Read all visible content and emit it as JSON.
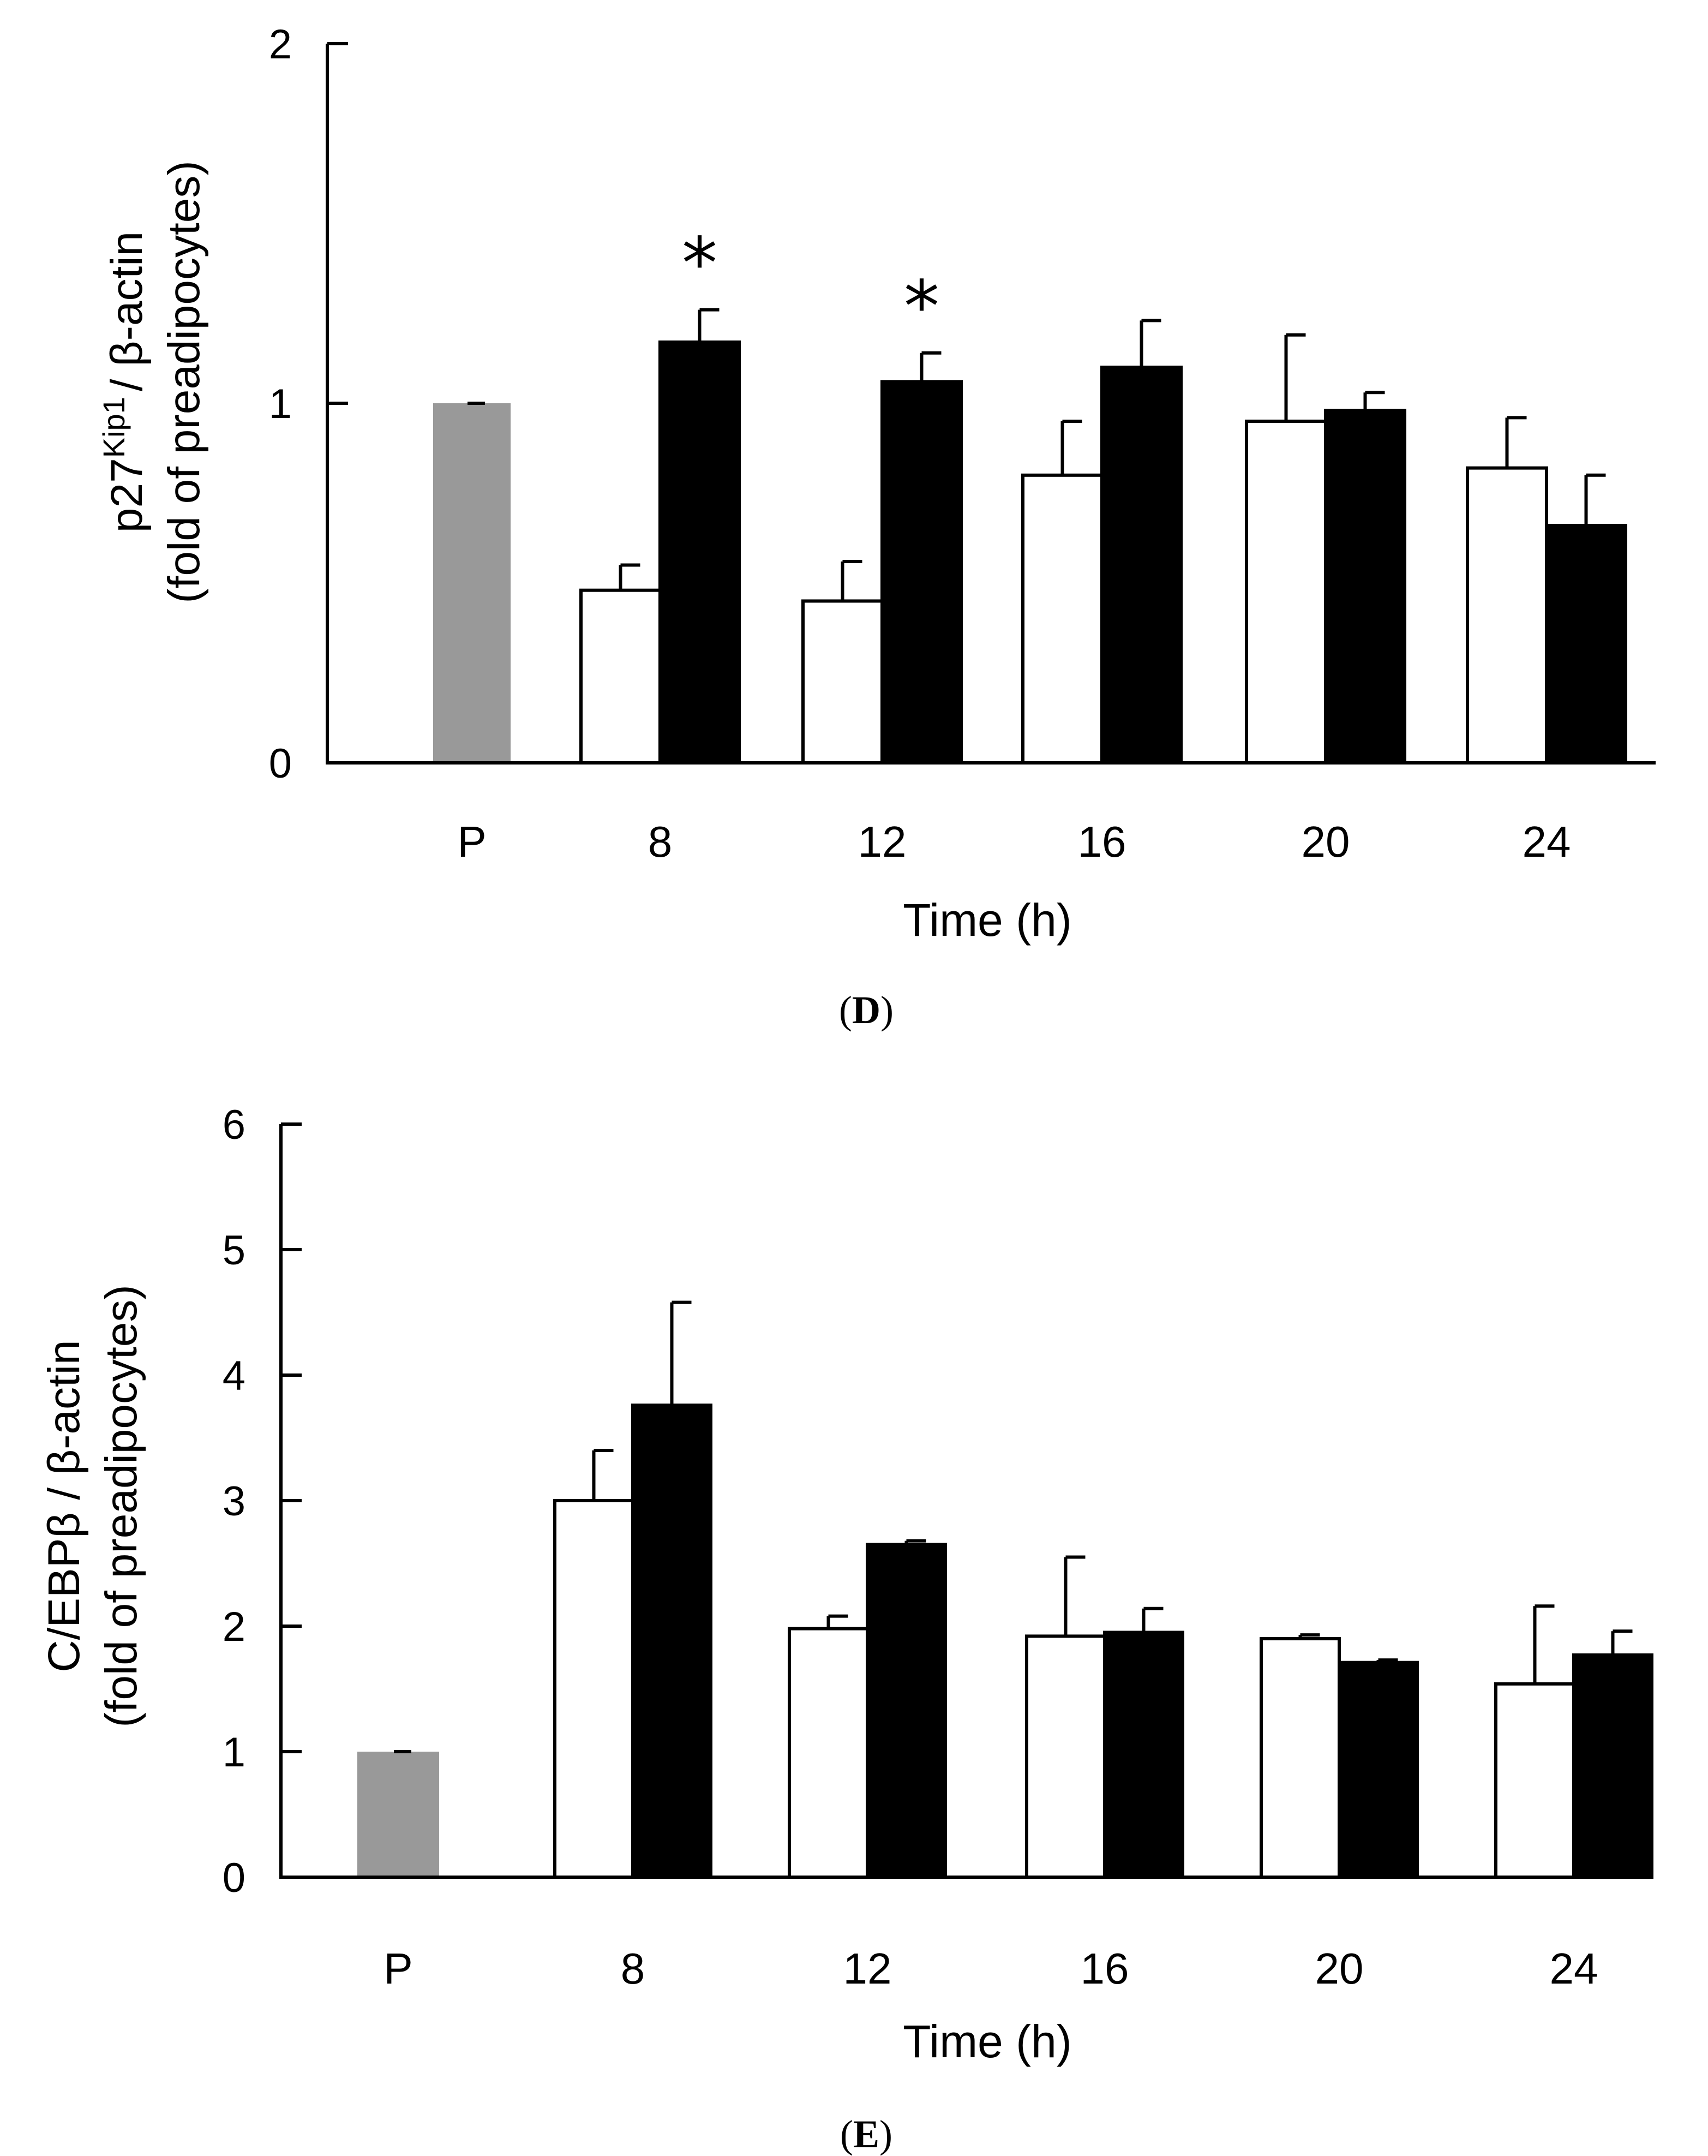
{
  "chart_data": [
    {
      "type": "bar",
      "panel": "D",
      "panel_label": {
        "open": "(",
        "letter": "D",
        "close": ")"
      },
      "ylabel_line1": {
        "prefix": "p27",
        "sup": "Kip1",
        "suffix": "/ β-actin"
      },
      "ylabel_line2": "(fold of preadipocytes)",
      "xlabel": "Time (h)",
      "ylim": [
        0,
        2
      ],
      "yticks": [
        "0",
        "1",
        "2"
      ],
      "categories": [
        "P",
        "8",
        "12",
        "16",
        "20",
        "24"
      ],
      "preadipocyte": {
        "value": 1.0,
        "error": 0.0,
        "color": "#999999"
      },
      "series": [
        {
          "name": "open bars",
          "color": "#ffffff",
          "values": [
            null,
            0.48,
            0.45,
            0.8,
            0.95,
            0.82
          ],
          "errors": [
            null,
            0.07,
            0.11,
            0.15,
            0.24,
            0.14
          ]
        },
        {
          "name": "filled bars",
          "color": "#000000",
          "values": [
            null,
            1.17,
            1.06,
            1.1,
            0.98,
            0.66
          ],
          "errors": [
            null,
            0.09,
            0.08,
            0.13,
            0.05,
            0.14
          ]
        }
      ],
      "significance": [
        {
          "category": "8",
          "series": 1,
          "symbol": "*"
        },
        {
          "category": "12",
          "series": 1,
          "symbol": "*"
        }
      ]
    },
    {
      "type": "bar",
      "panel": "E",
      "panel_label": {
        "open": "(",
        "letter": "E",
        "close": ")"
      },
      "ylabel_line1": {
        "prefix": "C/EBPβ / β-actin",
        "sup": "",
        "suffix": ""
      },
      "ylabel_line2": "(fold of preadipocytes)",
      "xlabel": "Time (h)",
      "ylim": [
        0,
        6
      ],
      "yticks": [
        "0",
        "1",
        "2",
        "3",
        "4",
        "5",
        "6"
      ],
      "categories": [
        "P",
        "8",
        "12",
        "16",
        "20",
        "24"
      ],
      "preadipocyte": {
        "value": 1.0,
        "error": 0.0,
        "color": "#999999"
      },
      "series": [
        {
          "name": "open bars",
          "color": "#ffffff",
          "values": [
            null,
            3.0,
            1.98,
            1.92,
            1.9,
            1.54
          ],
          "errors": [
            null,
            0.4,
            0.1,
            0.63,
            0.03,
            0.62
          ]
        },
        {
          "name": "filled bars",
          "color": "#000000",
          "values": [
            null,
            3.76,
            2.65,
            1.95,
            1.71,
            1.77
          ],
          "errors": [
            null,
            0.82,
            0.03,
            0.19,
            0.02,
            0.19
          ]
        }
      ],
      "significance": []
    }
  ]
}
